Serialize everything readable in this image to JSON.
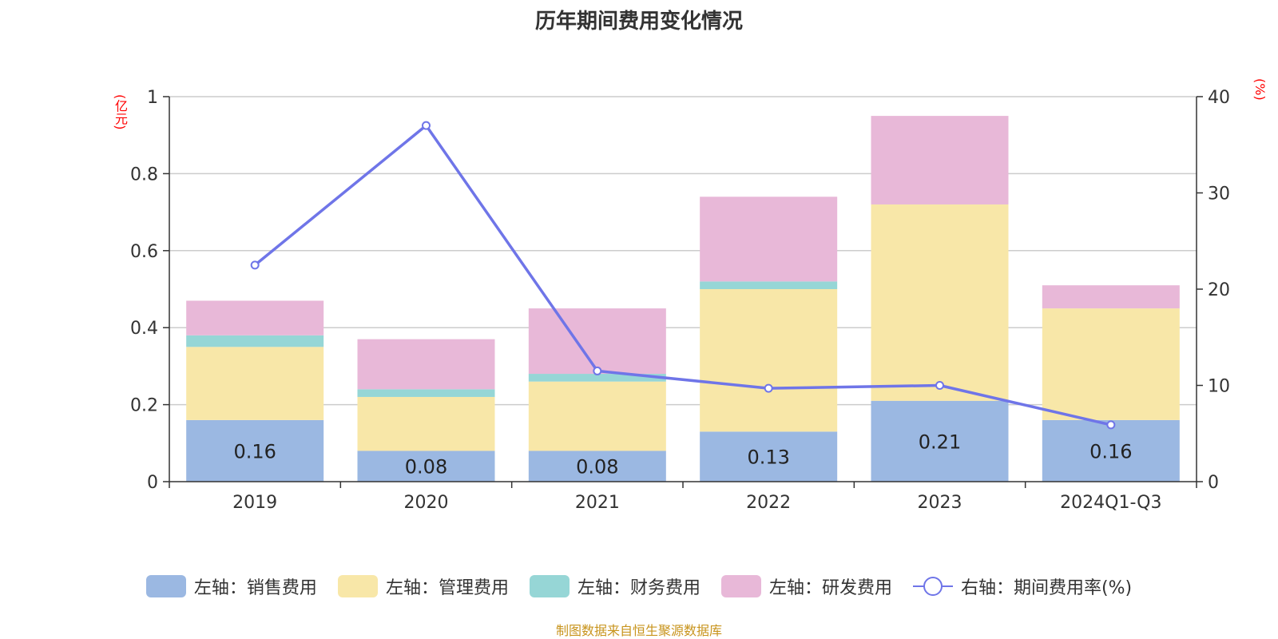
{
  "chart_data": {
    "type": "bar",
    "title": "历年期间费用变化情况",
    "categories": [
      "2019",
      "2020",
      "2021",
      "2022",
      "2023",
      "2024Q1-Q3"
    ],
    "left_axis": {
      "unit": "(亿元)",
      "ylim": [
        0,
        1
      ],
      "ticks": [
        "0",
        "0.2",
        "0.4",
        "0.6",
        "0.8",
        "1"
      ]
    },
    "right_axis": {
      "unit": "(%)",
      "ylim": [
        0,
        40
      ],
      "ticks": [
        "0",
        "10",
        "20",
        "30",
        "40"
      ]
    },
    "series": [
      {
        "name": "左轴：销售费用",
        "axis": "left",
        "stack": true,
        "color": "#9bb8e2",
        "values": [
          0.16,
          0.08,
          0.08,
          0.13,
          0.21,
          0.16
        ],
        "labels": [
          "0.16",
          "0.08",
          "0.08",
          "0.13",
          "0.21",
          "0.16"
        ]
      },
      {
        "name": "左轴：管理费用",
        "axis": "left",
        "stack": true,
        "color": "#f8e7a8",
        "values": [
          0.19,
          0.14,
          0.18,
          0.37,
          0.51,
          0.29
        ]
      },
      {
        "name": "左轴：财务费用",
        "axis": "left",
        "stack": true,
        "color": "#96d6d6",
        "values": [
          0.03,
          0.02,
          0.02,
          0.02,
          0.0,
          0.0
        ]
      },
      {
        "name": "左轴：研发费用",
        "axis": "left",
        "stack": true,
        "color": "#e8b8d8",
        "values": [
          0.09,
          0.13,
          0.17,
          0.22,
          0.23,
          0.06
        ]
      },
      {
        "name": "右轴：期间费用率(%)",
        "axis": "right",
        "type": "line",
        "color": "#6f75e8",
        "values": [
          22.5,
          37.0,
          11.5,
          9.7,
          10.0,
          5.9
        ]
      }
    ],
    "grid": true,
    "legend_position": "bottom"
  },
  "source": "制图数据来自恒生聚源数据库"
}
